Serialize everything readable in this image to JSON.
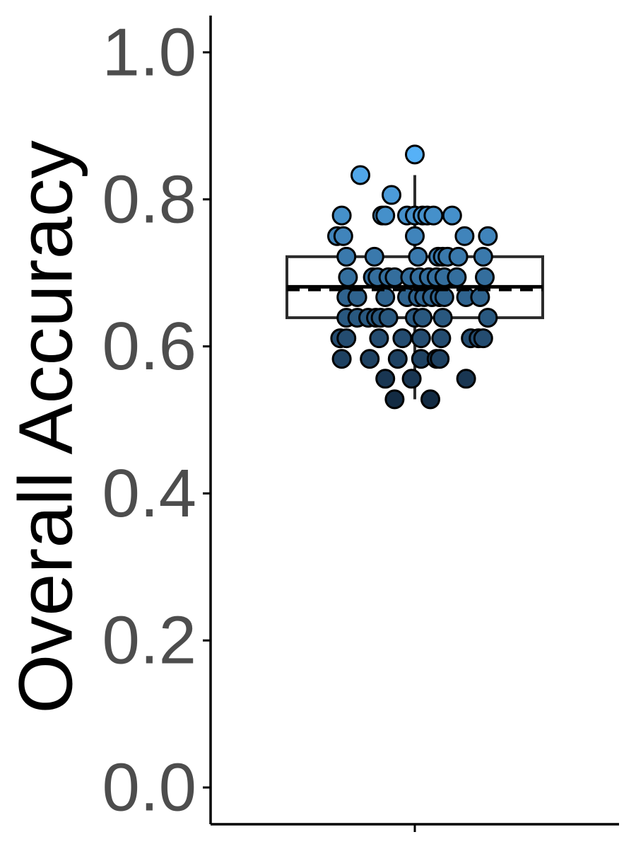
{
  "chart_data": {
    "type": "scatter",
    "subtype": "boxplot-with-jittered-points",
    "ylabel": "Overall Accuracy",
    "xlabel": "",
    "ylim": [
      -0.05,
      1.05
    ],
    "y_ticks": [
      0.0,
      0.2,
      0.4,
      0.6,
      0.8,
      1.0
    ],
    "y_tick_labels": [
      "0.0",
      "0.2",
      "0.4",
      "0.6",
      "0.8",
      "1.0"
    ],
    "x_ticks": [
      ""
    ],
    "grid": false,
    "legend": "none",
    "colors": {
      "point_low": "#132b43",
      "point_high": "#56b1f7",
      "box": "#2b2b2b",
      "tick_label": "#4d4d4d"
    },
    "box": {
      "q1": 0.639,
      "median": 0.681,
      "q3": 0.722,
      "whisker_low": 0.528,
      "whisker_high": 0.833,
      "mean": 0.677
    },
    "points": [
      {
        "x": 0.0,
        "y": 0.861
      },
      {
        "x": -0.35,
        "y": 0.833
      },
      {
        "x": -0.15,
        "y": 0.806
      },
      {
        "x": -0.47,
        "y": 0.778
      },
      {
        "x": -0.21,
        "y": 0.778
      },
      {
        "x": -0.19,
        "y": 0.778
      },
      {
        "x": -0.05,
        "y": 0.778
      },
      {
        "x": 0.0,
        "y": 0.778
      },
      {
        "x": 0.05,
        "y": 0.778
      },
      {
        "x": 0.08,
        "y": 0.778
      },
      {
        "x": 0.12,
        "y": 0.778
      },
      {
        "x": 0.24,
        "y": 0.778
      },
      {
        "x": -0.5,
        "y": 0.75
      },
      {
        "x": -0.46,
        "y": 0.75
      },
      {
        "x": 0.0,
        "y": 0.75
      },
      {
        "x": 0.32,
        "y": 0.75
      },
      {
        "x": 0.47,
        "y": 0.75
      },
      {
        "x": -0.44,
        "y": 0.722
      },
      {
        "x": -0.26,
        "y": 0.722
      },
      {
        "x": 0.02,
        "y": 0.722
      },
      {
        "x": 0.15,
        "y": 0.722
      },
      {
        "x": 0.18,
        "y": 0.722
      },
      {
        "x": 0.21,
        "y": 0.722
      },
      {
        "x": 0.28,
        "y": 0.722
      },
      {
        "x": 0.44,
        "y": 0.722
      },
      {
        "x": -0.43,
        "y": 0.694
      },
      {
        "x": -0.27,
        "y": 0.694
      },
      {
        "x": -0.24,
        "y": 0.694
      },
      {
        "x": -0.17,
        "y": 0.694
      },
      {
        "x": -0.13,
        "y": 0.694
      },
      {
        "x": -0.03,
        "y": 0.694
      },
      {
        "x": 0.03,
        "y": 0.694
      },
      {
        "x": 0.09,
        "y": 0.694
      },
      {
        "x": 0.14,
        "y": 0.694
      },
      {
        "x": 0.19,
        "y": 0.694
      },
      {
        "x": 0.27,
        "y": 0.694
      },
      {
        "x": 0.45,
        "y": 0.694
      },
      {
        "x": -0.44,
        "y": 0.667
      },
      {
        "x": -0.37,
        "y": 0.667
      },
      {
        "x": -0.19,
        "y": 0.667
      },
      {
        "x": -0.05,
        "y": 0.667
      },
      {
        "x": 0.02,
        "y": 0.667
      },
      {
        "x": 0.06,
        "y": 0.667
      },
      {
        "x": 0.11,
        "y": 0.667
      },
      {
        "x": 0.16,
        "y": 0.667
      },
      {
        "x": 0.19,
        "y": 0.667
      },
      {
        "x": 0.33,
        "y": 0.667
      },
      {
        "x": 0.42,
        "y": 0.667
      },
      {
        "x": -0.44,
        "y": 0.639
      },
      {
        "x": -0.37,
        "y": 0.639
      },
      {
        "x": -0.3,
        "y": 0.639
      },
      {
        "x": -0.25,
        "y": 0.639
      },
      {
        "x": -0.22,
        "y": 0.639
      },
      {
        "x": -0.17,
        "y": 0.639
      },
      {
        "x": 0.0,
        "y": 0.639
      },
      {
        "x": 0.05,
        "y": 0.639
      },
      {
        "x": 0.18,
        "y": 0.639
      },
      {
        "x": 0.47,
        "y": 0.639
      },
      {
        "x": -0.48,
        "y": 0.611
      },
      {
        "x": -0.44,
        "y": 0.611
      },
      {
        "x": -0.23,
        "y": 0.611
      },
      {
        "x": -0.08,
        "y": 0.611
      },
      {
        "x": 0.04,
        "y": 0.611
      },
      {
        "x": 0.17,
        "y": 0.611
      },
      {
        "x": 0.36,
        "y": 0.611
      },
      {
        "x": 0.41,
        "y": 0.611
      },
      {
        "x": 0.44,
        "y": 0.611
      },
      {
        "x": -0.47,
        "y": 0.583
      },
      {
        "x": -0.29,
        "y": 0.583
      },
      {
        "x": -0.11,
        "y": 0.583
      },
      {
        "x": 0.04,
        "y": 0.583
      },
      {
        "x": 0.14,
        "y": 0.583
      },
      {
        "x": 0.16,
        "y": 0.583
      },
      {
        "x": -0.19,
        "y": 0.556
      },
      {
        "x": -0.02,
        "y": 0.556
      },
      {
        "x": 0.33,
        "y": 0.556
      },
      {
        "x": -0.13,
        "y": 0.528
      },
      {
        "x": 0.1,
        "y": 0.528
      }
    ]
  }
}
